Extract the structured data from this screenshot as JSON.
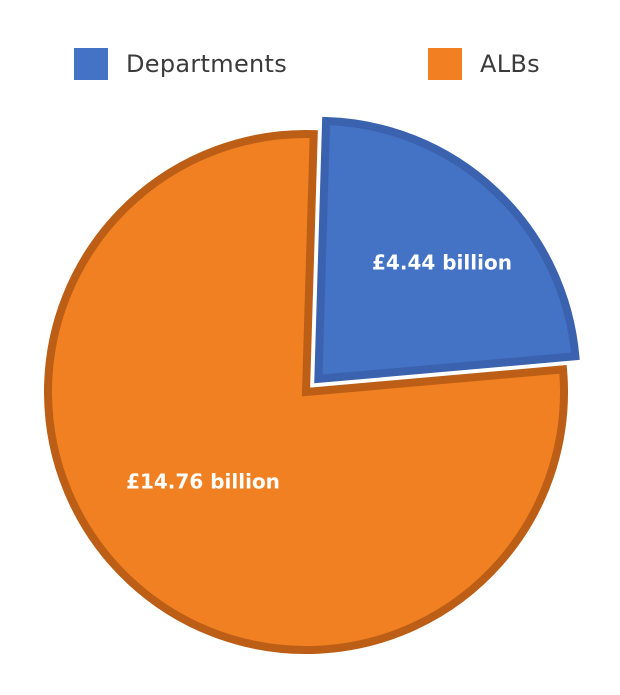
{
  "chart_data": {
    "type": "pie",
    "title": "",
    "series": [
      {
        "name": "Departments",
        "value": 4.44,
        "label": "£4.44 billion",
        "fill": "#4472C4",
        "stroke": "#3A62AE",
        "exploded": true
      },
      {
        "name": "ALBs",
        "value": 14.76,
        "label": "£14.76 billion",
        "fill": "#F08021",
        "stroke": "#BC5E16",
        "exploded": false
      }
    ],
    "legend": {
      "placement": "top",
      "entries": [
        "Departments",
        "ALBs"
      ]
    }
  }
}
